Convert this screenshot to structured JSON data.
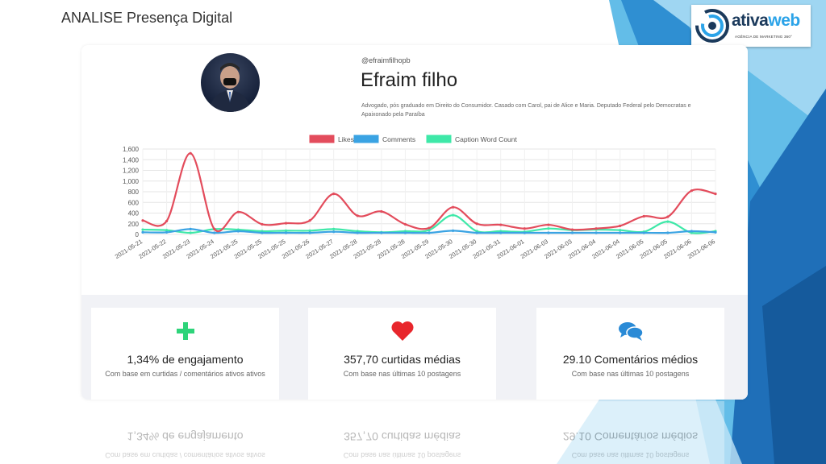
{
  "slide": {
    "title": "ANALISE Presença Digital"
  },
  "logo": {
    "brand_part1": "ativa",
    "brand_part2": "web",
    "tagline": "AGÊNCIA DE MARKETING 360°"
  },
  "profile": {
    "handle": "@efraimfilhopb",
    "name": "Efraim filho",
    "bio": "Advogado, pós graduado em Direito do Consumidor. Casado com Carol, pai de Alice e Maria. Deputado Federal pelo Democratas e Apaixonado pela Paraíba"
  },
  "chart_data": {
    "type": "line",
    "legend_position": "top",
    "grid": true,
    "ylim": [
      0,
      1600
    ],
    "yticks": [
      "0",
      "200",
      "400",
      "600",
      "800",
      "1,000",
      "1,200",
      "1,400",
      "1,600"
    ],
    "x": [
      "2021-05-21",
      "2021-05-22",
      "2021-05-23",
      "2021-05-24",
      "2021-05-25",
      "2021-05-25",
      "2021-05-25",
      "2021-05-26",
      "2021-05-27",
      "2021-05-28",
      "2021-05-28",
      "2021-05-28",
      "2021-05-29",
      "2021-05-30",
      "2021-05-30",
      "2021-05-31",
      "2021-06-01",
      "2021-06-03",
      "2021-06-03",
      "2021-06-04",
      "2021-06-04",
      "2021-06-05",
      "2021-06-05",
      "2021-06-06",
      "2021-06-06"
    ],
    "series": [
      {
        "name": "Likes",
        "color": "#e34c5c",
        "values": [
          260,
          250,
          1520,
          100,
          420,
          190,
          210,
          260,
          760,
          350,
          430,
          190,
          120,
          510,
          200,
          180,
          110,
          180,
          90,
          110,
          160,
          340,
          330,
          820,
          760
        ]
      },
      {
        "name": "Comments",
        "color": "#3aa3e3",
        "values": [
          40,
          40,
          100,
          30,
          60,
          30,
          30,
          30,
          50,
          30,
          30,
          30,
          30,
          70,
          30,
          30,
          30,
          30,
          30,
          30,
          30,
          30,
          30,
          60,
          40
        ]
      },
      {
        "name": "Caption Word Count",
        "color": "#3ee8a8",
        "values": [
          90,
          80,
          30,
          100,
          90,
          60,
          70,
          70,
          100,
          60,
          40,
          60,
          80,
          360,
          60,
          60,
          50,
          110,
          80,
          90,
          80,
          50,
          240,
          30,
          60
        ]
      }
    ]
  },
  "stats": [
    {
      "icon": "plus-icon",
      "color": "#2ed47a",
      "title": "1,34% de engajamento",
      "subtitle": "Com base em curtidas / comentários ativos ativos"
    },
    {
      "icon": "heart-icon",
      "color": "#e8262c",
      "title": "357,70 curtidas médias",
      "subtitle": "Com base nas últimas 10 postagens"
    },
    {
      "icon": "comments-icon",
      "color": "#2a8ad6",
      "title": "29.10 Comentários médios",
      "subtitle": "Com base nas últimas 10 postagens"
    }
  ]
}
